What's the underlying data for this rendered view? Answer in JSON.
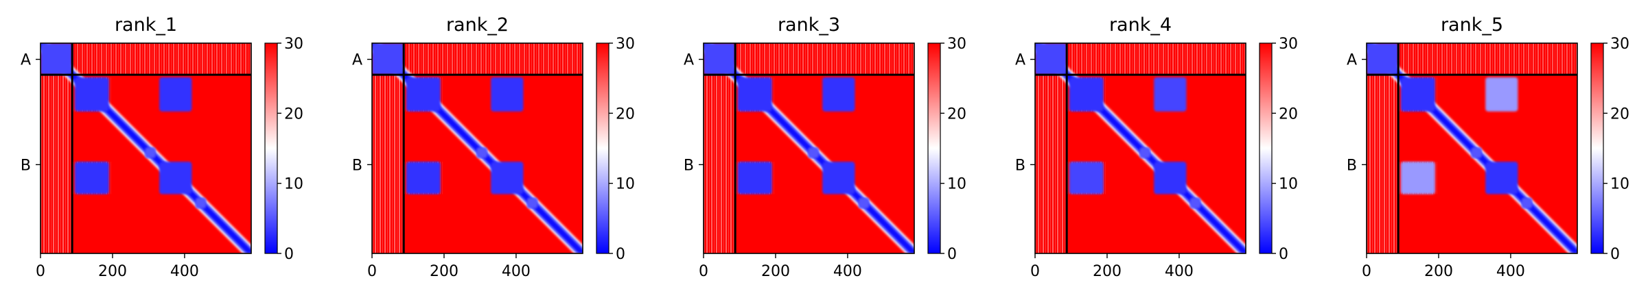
{
  "chart_data": [
    {
      "type": "heatmap",
      "title": "rank_1",
      "xlabel": "",
      "ylabel": "",
      "x_ticks": [
        0,
        200,
        400
      ],
      "xlim": [
        0,
        585
      ],
      "ylim": [
        585,
        0
      ],
      "chain_labels": [
        "A",
        "B"
      ],
      "chain_label_positions": [
        45,
        338
      ],
      "chain_boundary": 88,
      "colorbar": {
        "ticks": [
          0,
          10,
          20,
          30
        ],
        "min": 0,
        "max": 30,
        "colors": [
          "#0000ff",
          "#ffffff",
          "#ff0000"
        ]
      },
      "diagonal_half_width": [
        24,
        18,
        12
      ],
      "blue_blocks": [
        {
          "x": [
            0,
            88
          ],
          "y": [
            0,
            88
          ],
          "value": 4
        },
        {
          "x": [
            95,
            190
          ],
          "y": [
            95,
            190
          ],
          "value": 3
        },
        {
          "x": [
            330,
            420
          ],
          "y": [
            95,
            190
          ],
          "value": 3
        },
        {
          "x": [
            95,
            190
          ],
          "y": [
            330,
            420
          ],
          "value": 3
        },
        {
          "x": [
            330,
            420
          ],
          "y": [
            330,
            420
          ],
          "value": 3
        },
        {
          "x": [
            290,
            320
          ],
          "y": [
            290,
            320
          ],
          "value": 5
        },
        {
          "x": [
            430,
            460
          ],
          "y": [
            430,
            460
          ],
          "value": 5
        }
      ]
    },
    {
      "type": "heatmap",
      "title": "rank_2",
      "xlabel": "",
      "ylabel": "",
      "x_ticks": [
        0,
        200,
        400
      ],
      "xlim": [
        0,
        585
      ],
      "ylim": [
        585,
        0
      ],
      "chain_labels": [
        "A",
        "B"
      ],
      "chain_label_positions": [
        45,
        338
      ],
      "chain_boundary": 88,
      "colorbar": {
        "ticks": [
          0,
          10,
          20,
          30
        ],
        "min": 0,
        "max": 30,
        "colors": [
          "#0000ff",
          "#ffffff",
          "#ff0000"
        ]
      },
      "diagonal_half_width": [
        24,
        18,
        12
      ],
      "blue_blocks": [
        {
          "x": [
            0,
            88
          ],
          "y": [
            0,
            88
          ],
          "value": 4
        },
        {
          "x": [
            95,
            190
          ],
          "y": [
            95,
            190
          ],
          "value": 3
        },
        {
          "x": [
            330,
            420
          ],
          "y": [
            95,
            190
          ],
          "value": 3
        },
        {
          "x": [
            95,
            190
          ],
          "y": [
            330,
            420
          ],
          "value": 3
        },
        {
          "x": [
            330,
            420
          ],
          "y": [
            330,
            420
          ],
          "value": 3
        },
        {
          "x": [
            290,
            320
          ],
          "y": [
            290,
            320
          ],
          "value": 5
        },
        {
          "x": [
            430,
            460
          ],
          "y": [
            430,
            460
          ],
          "value": 5
        }
      ]
    },
    {
      "type": "heatmap",
      "title": "rank_3",
      "xlabel": "",
      "ylabel": "",
      "x_ticks": [
        0,
        200,
        400
      ],
      "xlim": [
        0,
        585
      ],
      "ylim": [
        585,
        0
      ],
      "chain_labels": [
        "A",
        "B"
      ],
      "chain_label_positions": [
        45,
        338
      ],
      "chain_boundary": 88,
      "colorbar": {
        "ticks": [
          0,
          10,
          20,
          30
        ],
        "min": 0,
        "max": 30,
        "colors": [
          "#0000ff",
          "#ffffff",
          "#ff0000"
        ]
      },
      "diagonal_half_width": [
        24,
        18,
        12
      ],
      "blue_blocks": [
        {
          "x": [
            0,
            88
          ],
          "y": [
            0,
            88
          ],
          "value": 4
        },
        {
          "x": [
            95,
            190
          ],
          "y": [
            95,
            190
          ],
          "value": 3
        },
        {
          "x": [
            330,
            420
          ],
          "y": [
            95,
            190
          ],
          "value": 3
        },
        {
          "x": [
            95,
            190
          ],
          "y": [
            330,
            420
          ],
          "value": 3
        },
        {
          "x": [
            330,
            420
          ],
          "y": [
            330,
            420
          ],
          "value": 3
        },
        {
          "x": [
            290,
            320
          ],
          "y": [
            290,
            320
          ],
          "value": 5
        },
        {
          "x": [
            430,
            460
          ],
          "y": [
            430,
            460
          ],
          "value": 5
        }
      ]
    },
    {
      "type": "heatmap",
      "title": "rank_4",
      "xlabel": "",
      "ylabel": "",
      "x_ticks": [
        0,
        200,
        400
      ],
      "xlim": [
        0,
        585
      ],
      "ylim": [
        585,
        0
      ],
      "chain_labels": [
        "A",
        "B"
      ],
      "chain_label_positions": [
        45,
        338
      ],
      "chain_boundary": 88,
      "colorbar": {
        "ticks": [
          0,
          10,
          20,
          30
        ],
        "min": 0,
        "max": 30,
        "colors": [
          "#0000ff",
          "#ffffff",
          "#ff0000"
        ]
      },
      "diagonal_half_width": [
        24,
        18,
        12
      ],
      "blue_blocks": [
        {
          "x": [
            0,
            88
          ],
          "y": [
            0,
            88
          ],
          "value": 4
        },
        {
          "x": [
            95,
            190
          ],
          "y": [
            95,
            190
          ],
          "value": 3
        },
        {
          "x": [
            330,
            420
          ],
          "y": [
            95,
            190
          ],
          "value": 4
        },
        {
          "x": [
            95,
            190
          ],
          "y": [
            330,
            420
          ],
          "value": 4
        },
        {
          "x": [
            330,
            420
          ],
          "y": [
            330,
            420
          ],
          "value": 3
        },
        {
          "x": [
            290,
            320
          ],
          "y": [
            290,
            320
          ],
          "value": 5
        },
        {
          "x": [
            430,
            460
          ],
          "y": [
            430,
            460
          ],
          "value": 5
        }
      ]
    },
    {
      "type": "heatmap",
      "title": "rank_5",
      "xlabel": "",
      "ylabel": "",
      "x_ticks": [
        0,
        200,
        400
      ],
      "xlim": [
        0,
        585
      ],
      "ylim": [
        585,
        0
      ],
      "chain_labels": [
        "A",
        "B"
      ],
      "chain_label_positions": [
        45,
        338
      ],
      "chain_boundary": 88,
      "colorbar": {
        "ticks": [
          0,
          10,
          20,
          30
        ],
        "min": 0,
        "max": 30,
        "colors": [
          "#0000ff",
          "#ffffff",
          "#ff0000"
        ]
      },
      "diagonal_half_width": [
        24,
        18,
        12
      ],
      "blue_blocks": [
        {
          "x": [
            0,
            88
          ],
          "y": [
            0,
            88
          ],
          "value": 4
        },
        {
          "x": [
            95,
            190
          ],
          "y": [
            95,
            190
          ],
          "value": 3
        },
        {
          "x": [
            330,
            420
          ],
          "y": [
            95,
            190
          ],
          "value": 9
        },
        {
          "x": [
            95,
            190
          ],
          "y": [
            330,
            420
          ],
          "value": 9
        },
        {
          "x": [
            330,
            420
          ],
          "y": [
            330,
            420
          ],
          "value": 3
        },
        {
          "x": [
            290,
            320
          ],
          "y": [
            290,
            320
          ],
          "value": 5
        },
        {
          "x": [
            430,
            460
          ],
          "y": [
            430,
            460
          ],
          "value": 5
        }
      ]
    }
  ]
}
